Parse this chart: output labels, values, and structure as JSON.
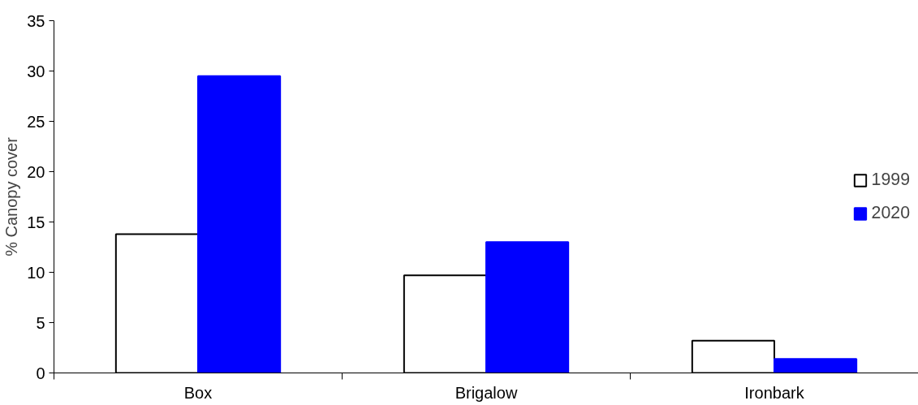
{
  "chart_data": {
    "type": "bar",
    "ylabel": "% Canopy cover",
    "categories": [
      "Box",
      "Brigalow",
      "Ironbark"
    ],
    "series": [
      {
        "name": "1999",
        "color": "#ffffff",
        "values": [
          13.8,
          9.7,
          3.2
        ]
      },
      {
        "name": "2020",
        "color": "#0000ff",
        "values": [
          29.5,
          13.0,
          1.4
        ]
      }
    ],
    "ylim": [
      0,
      35
    ],
    "yticks": [
      0,
      5,
      10,
      15,
      20,
      25,
      30,
      35
    ],
    "grid": false,
    "legend": "right"
  }
}
